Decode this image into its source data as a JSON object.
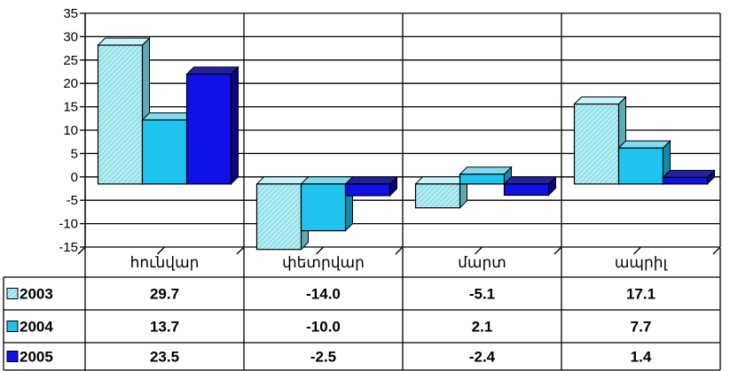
{
  "chart_data": {
    "type": "bar",
    "categories": [
      "հունվար",
      "փետրվար",
      "մարտ",
      "ապրիլ"
    ],
    "series": [
      {
        "name": "2003",
        "values": [
          29.7,
          -14.0,
          -5.1,
          17.1
        ]
      },
      {
        "name": "2004",
        "values": [
          13.7,
          -10.0,
          2.1,
          7.7
        ]
      },
      {
        "name": "2005",
        "values": [
          23.5,
          -2.5,
          -2.4,
          1.4
        ]
      }
    ],
    "value_labels": [
      [
        "29.7",
        "-14.0",
        "-5.1",
        "17.1"
      ],
      [
        "13.7",
        "-10.0",
        "2.1",
        "7.7"
      ],
      [
        "23.5",
        "-2.5",
        "-2.4",
        "1.4"
      ]
    ],
    "ylim": [
      -15,
      35
    ],
    "yticks": [
      -15,
      -10,
      -5,
      0,
      5,
      10,
      15,
      20,
      25,
      30,
      35
    ],
    "grid": true,
    "legend": "data-table",
    "colors": [
      "#9ee8f0",
      "#1ec4ee",
      "#1010e8"
    ],
    "side_colors": [
      "#5fa9b2",
      "#128aa8",
      "#08087a"
    ],
    "top_colors": [
      "#c6f3f7",
      "#7fdcf4",
      "#2222a0"
    ]
  }
}
